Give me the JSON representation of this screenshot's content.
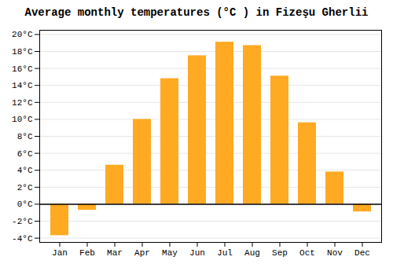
{
  "chart_data": {
    "type": "bar",
    "title": "Average monthly temperatures (°C ) in Fizeşu Gherlii",
    "categories": [
      "Jan",
      "Feb",
      "Mar",
      "Apr",
      "May",
      "Jun",
      "Jul",
      "Aug",
      "Sep",
      "Oct",
      "Nov",
      "Dec"
    ],
    "values": [
      -3.7,
      -0.7,
      4.6,
      10.0,
      14.8,
      17.5,
      19.1,
      18.7,
      15.1,
      9.6,
      3.8,
      -0.9
    ],
    "color": "#FFAA22",
    "ylim": [
      -4.5,
      20.5
    ],
    "yticks": [
      {
        "value": -4,
        "label": "-4°C"
      },
      {
        "value": -2,
        "label": "-2°C"
      },
      {
        "value": 0,
        "label": "0°C"
      },
      {
        "value": 2,
        "label": "2°C"
      },
      {
        "value": 4,
        "label": "4°C"
      },
      {
        "value": 6,
        "label": "6°C"
      },
      {
        "value": 8,
        "label": "8°C"
      },
      {
        "value": 10,
        "label": "10°C"
      },
      {
        "value": 12,
        "label": "12°C"
      },
      {
        "value": 14,
        "label": "14°C"
      },
      {
        "value": 16,
        "label": "16°C"
      },
      {
        "value": 18,
        "label": "18°C"
      },
      {
        "value": 20,
        "label": "20°C"
      }
    ],
    "grid": true
  }
}
